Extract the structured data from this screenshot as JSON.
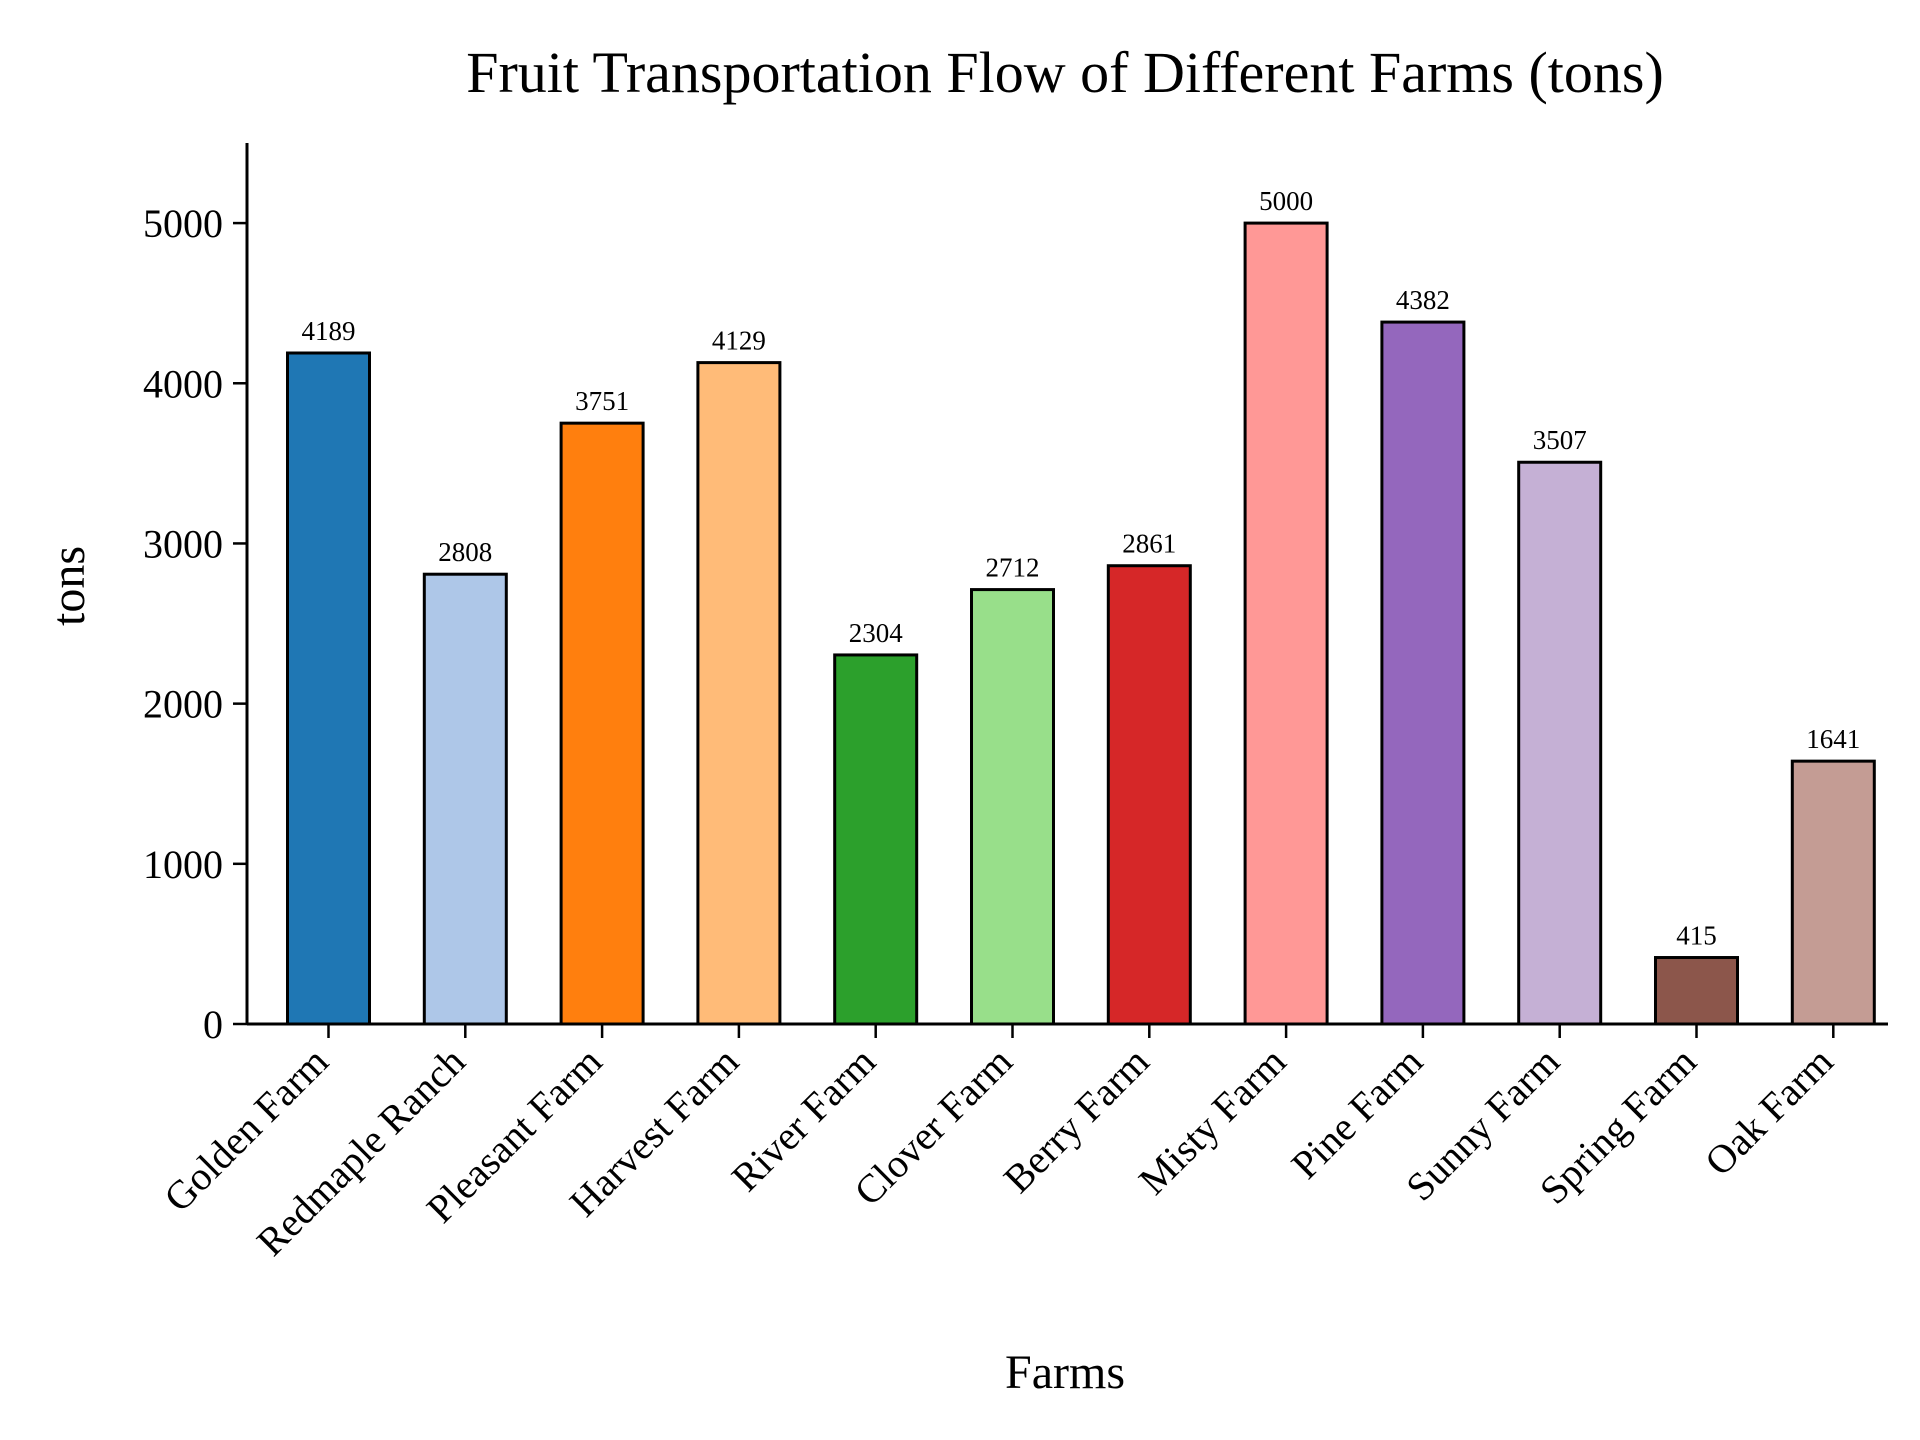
{
  "chart_data": {
    "type": "bar",
    "title": "Fruit Transportation Flow of Different Farms (tons)",
    "xlabel": "Farms",
    "ylabel": "tons",
    "categories": [
      "Golden Farm",
      "Redmaple Ranch",
      "Pleasant Farm",
      "Harvest Farm",
      "River Farm",
      "Clover Farm",
      "Berry Farm",
      "Misty Farm",
      "Pine Farm",
      "Sunny Farm",
      "Spring Farm",
      "Oak Farm"
    ],
    "values": [
      4189,
      2808,
      3751,
      4129,
      2304,
      2712,
      2861,
      5000,
      4382,
      3507,
      415,
      1641
    ],
    "data_labels": [
      "4189",
      "2808",
      "3751",
      "4129",
      "2304",
      "2712",
      "2861",
      "5000",
      "4382",
      "3507",
      "415",
      "1641"
    ],
    "colors": [
      "#1f77b4",
      "#aec7e8",
      "#ff7f0e",
      "#ffbb78",
      "#2ca02c",
      "#98df8a",
      "#d62728",
      "#ff9896",
      "#9467bd",
      "#c5b0d5",
      "#8c564b",
      "#c49c94"
    ],
    "ylim": [
      0,
      5500
    ],
    "yticks": [
      0,
      1000,
      2000,
      3000,
      4000,
      5000
    ],
    "ytick_labels": [
      "0",
      "1000",
      "2000",
      "3000",
      "4000",
      "5000"
    ],
    "grid": false,
    "legend": "none"
  }
}
